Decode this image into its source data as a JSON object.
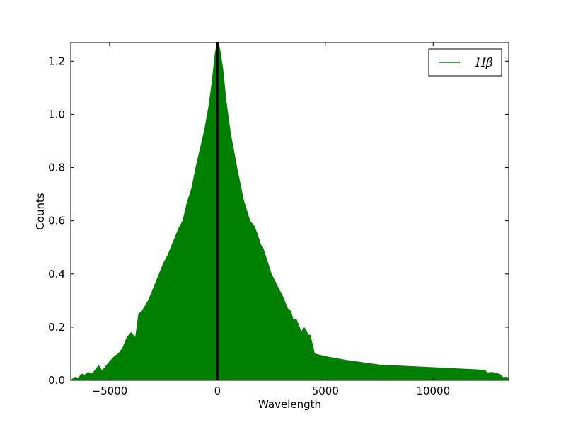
{
  "chart_data": {
    "type": "area",
    "title": "",
    "xlabel": "Wavelength",
    "ylabel": "Counts",
    "xlim": [
      -6800,
      13500
    ],
    "ylim": [
      0,
      1.27
    ],
    "xticks": [
      -5000,
      0,
      5000,
      10000
    ],
    "xtick_labels": [
      "−5000",
      "0",
      "5000",
      "10000"
    ],
    "yticks": [
      0,
      0.2,
      0.4,
      0.6,
      0.8,
      1.0,
      1.2
    ],
    "ytick_labels": [
      "0.0",
      "0.2",
      "0.4",
      "0.6",
      "0.8",
      "1.0",
      "1.2"
    ],
    "grid": false,
    "legend": {
      "placement": "top-right",
      "entries": [
        "Hβ"
      ]
    },
    "vertical_line": {
      "x": 0,
      "color": "#000000"
    },
    "series": [
      {
        "name": "Hβ",
        "color": "#008000",
        "fill": true,
        "x": [
          -6800,
          -6600,
          -6450,
          -6300,
          -6150,
          -6000,
          -5800,
          -5600,
          -5500,
          -5350,
          -5200,
          -5000,
          -4800,
          -4600,
          -4400,
          -4200,
          -4000,
          -3800,
          -3650,
          -3500,
          -3350,
          -3200,
          -2900,
          -2700,
          -2500,
          -2300,
          -2000,
          -1800,
          -1600,
          -1400,
          -1200,
          -1000,
          -800,
          -600,
          -400,
          -250,
          -120,
          0,
          120,
          250,
          400,
          600,
          900,
          1200,
          1500,
          1700,
          1850,
          2000,
          2100,
          2300,
          2500,
          2800,
          3000,
          3100,
          3250,
          3400,
          3500,
          3650,
          3800,
          3900,
          4000,
          4100,
          4200,
          4300,
          4500,
          5000,
          6000,
          7500,
          9000,
          10500,
          12000,
          12400,
          12500,
          12700,
          12900,
          13100,
          13250,
          13400,
          13500
        ],
        "y": [
          0.0,
          0.012,
          0.008,
          0.024,
          0.02,
          0.03,
          0.024,
          0.046,
          0.055,
          0.035,
          0.05,
          0.07,
          0.088,
          0.1,
          0.12,
          0.16,
          0.18,
          0.16,
          0.25,
          0.26,
          0.28,
          0.3,
          0.36,
          0.4,
          0.44,
          0.47,
          0.53,
          0.57,
          0.6,
          0.67,
          0.72,
          0.8,
          0.87,
          0.94,
          1.03,
          1.12,
          1.22,
          1.28,
          1.24,
          1.17,
          1.05,
          0.93,
          0.8,
          0.68,
          0.6,
          0.58,
          0.55,
          0.51,
          0.5,
          0.45,
          0.4,
          0.35,
          0.32,
          0.3,
          0.27,
          0.26,
          0.23,
          0.23,
          0.2,
          0.18,
          0.2,
          0.19,
          0.17,
          0.17,
          0.1,
          0.09,
          0.075,
          0.058,
          0.052,
          0.046,
          0.04,
          0.038,
          0.028,
          0.03,
          0.028,
          0.022,
          0.01,
          0.012,
          0.008
        ]
      }
    ]
  }
}
